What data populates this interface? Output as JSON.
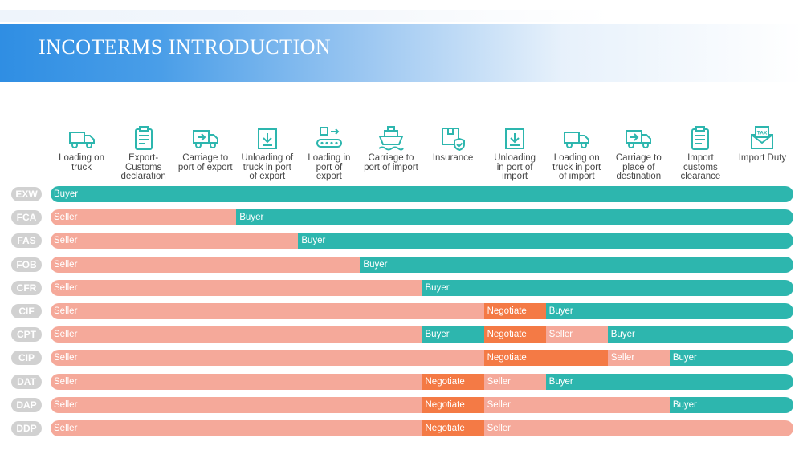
{
  "title": "INCOTERMS INTRODUCTION",
  "colors": {
    "seller": "#f5a99a",
    "buyer": "#2db6ae",
    "negotiate": "#f47a45",
    "badge": "#d1d1d1",
    "icon": "#2db6ae"
  },
  "columns": [
    {
      "icon": "delivery-truck-icon",
      "label": "Loading on\ntruck"
    },
    {
      "icon": "clipboard-icon",
      "label": "Export-\nCustoms\ndeclaration"
    },
    {
      "icon": "truck-with-box-icon",
      "label": "Carriage to\nport of export"
    },
    {
      "icon": "box-unload-icon",
      "label": "Unloading of\ntruck in port\nof export"
    },
    {
      "icon": "conveyor-icon",
      "label": "Loading in\nport of\nexport"
    },
    {
      "icon": "ship-icon",
      "label": "Carriage to\nport of import"
    },
    {
      "icon": "shield-box-icon",
      "label": "Insurance"
    },
    {
      "icon": "box-unload-icon",
      "label": "Unloading\nin port of\nimport"
    },
    {
      "icon": "delivery-truck-icon",
      "label": "Loading on\ntruck in port\nof import"
    },
    {
      "icon": "truck-with-box-icon",
      "label": "Carriage to\nplace of\ndestination"
    },
    {
      "icon": "clipboard-icon",
      "label": "Import\ncustoms\nclearance"
    },
    {
      "icon": "tax-envelope-icon",
      "label": "Import Duty"
    }
  ],
  "rows": [
    {
      "code": "EXW",
      "segments": [
        {
          "party": "buyer",
          "label": "Buyer",
          "start": 0,
          "end": 12
        }
      ]
    },
    {
      "code": "FCA",
      "segments": [
        {
          "party": "seller",
          "label": "Seller",
          "start": 0,
          "end": 3
        },
        {
          "party": "buyer",
          "label": "Buyer",
          "start": 3,
          "end": 12
        }
      ]
    },
    {
      "code": "FAS",
      "segments": [
        {
          "party": "seller",
          "label": "Seller",
          "start": 0,
          "end": 4
        },
        {
          "party": "buyer",
          "label": "Buyer",
          "start": 4,
          "end": 12
        }
      ]
    },
    {
      "code": "FOB",
      "segments": [
        {
          "party": "seller",
          "label": "Seller",
          "start": 0,
          "end": 5
        },
        {
          "party": "buyer",
          "label": "Buyer",
          "start": 5,
          "end": 12
        }
      ]
    },
    {
      "code": "CFR",
      "segments": [
        {
          "party": "seller",
          "label": "Seller",
          "start": 0,
          "end": 6
        },
        {
          "party": "buyer",
          "label": "Buyer",
          "start": 6,
          "end": 12
        }
      ]
    },
    {
      "code": "CIF",
      "segments": [
        {
          "party": "seller",
          "label": "Seller",
          "start": 0,
          "end": 7
        },
        {
          "party": "negotiate",
          "label": "Negotiate",
          "start": 7,
          "end": 8
        },
        {
          "party": "buyer",
          "label": "Buyer",
          "start": 8,
          "end": 12
        }
      ]
    },
    {
      "code": "CPT",
      "segments": [
        {
          "party": "seller",
          "label": "Seller",
          "start": 0,
          "end": 6
        },
        {
          "party": "buyer",
          "label": "Buyer",
          "start": 6,
          "end": 7
        },
        {
          "party": "negotiate",
          "label": "Negotiate",
          "start": 7,
          "end": 8
        },
        {
          "party": "seller",
          "label": "Seller",
          "start": 8,
          "end": 9
        },
        {
          "party": "buyer",
          "label": "Buyer",
          "start": 9,
          "end": 12
        }
      ]
    },
    {
      "code": "CIP",
      "segments": [
        {
          "party": "seller",
          "label": "Seller",
          "start": 0,
          "end": 7
        },
        {
          "party": "negotiate",
          "label": "Negotiate",
          "start": 7,
          "end": 9
        },
        {
          "party": "seller",
          "label": "Seller",
          "start": 9,
          "end": 10
        },
        {
          "party": "buyer",
          "label": "Buyer",
          "start": 10,
          "end": 12
        }
      ]
    },
    {
      "code": "DAT",
      "segments": [
        {
          "party": "seller",
          "label": "Seller",
          "start": 0,
          "end": 6
        },
        {
          "party": "negotiate",
          "label": "Negotiate",
          "start": 6,
          "end": 7
        },
        {
          "party": "seller",
          "label": "Seller",
          "start": 7,
          "end": 8
        },
        {
          "party": "buyer",
          "label": "Buyer",
          "start": 8,
          "end": 12
        }
      ]
    },
    {
      "code": "DAP",
      "segments": [
        {
          "party": "seller",
          "label": "Seller",
          "start": 0,
          "end": 6
        },
        {
          "party": "negotiate",
          "label": "Negotiate",
          "start": 6,
          "end": 7
        },
        {
          "party": "seller",
          "label": "Seller",
          "start": 7,
          "end": 10
        },
        {
          "party": "buyer",
          "label": "Buyer",
          "start": 10,
          "end": 12
        }
      ]
    },
    {
      "code": "DDP",
      "segments": [
        {
          "party": "seller",
          "label": "Seller",
          "start": 0,
          "end": 6
        },
        {
          "party": "negotiate",
          "label": "Negotiate",
          "start": 6,
          "end": 7
        },
        {
          "party": "seller",
          "label": "Seller",
          "start": 7,
          "end": 12
        }
      ]
    }
  ]
}
